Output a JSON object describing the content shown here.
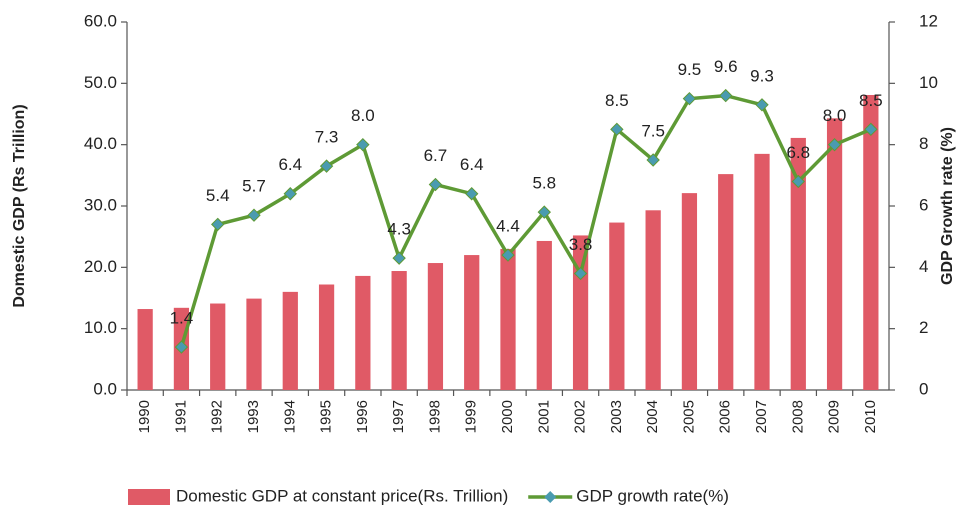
{
  "chart_data": {
    "type": "bar_line",
    "y_label": "Domestic GDP (Rs Trillion)",
    "y2_label": "GDP Growth rate (%)",
    "categories": [
      "1990",
      "1991",
      "1992",
      "1993",
      "1994",
      "1995",
      "1996",
      "1997",
      "1998",
      "1999",
      "2000",
      "2001",
      "2002",
      "2003",
      "2004",
      "2005",
      "2006",
      "2007",
      "2008",
      "2009",
      "2010"
    ],
    "series": [
      {
        "name": "Domestic GDP at constant price(Rs. Trillion)",
        "type": "bar",
        "color": "#e05a66",
        "values": [
          13.2,
          13.4,
          14.1,
          14.9,
          16.0,
          17.2,
          18.6,
          19.4,
          20.7,
          22.0,
          23.0,
          24.3,
          25.2,
          27.3,
          29.3,
          32.1,
          35.2,
          38.5,
          41.1,
          44.3,
          48.1
        ]
      },
      {
        "name": "GDP growth rate(%)",
        "type": "line",
        "axis": "y2",
        "color": "#5e9a35",
        "marker_color": "#4a9bb0",
        "values": [
          null,
          1.4,
          5.4,
          5.7,
          6.4,
          7.3,
          8.0,
          4.3,
          6.7,
          6.4,
          4.4,
          5.8,
          3.8,
          8.5,
          7.5,
          9.5,
          9.6,
          9.3,
          6.8,
          8.0,
          8.5
        ],
        "value_labels": [
          null,
          "1.4",
          "5.4",
          "5.7",
          "6.4",
          "7.3",
          "8.0",
          "4.3",
          "6.7",
          "6.4",
          "4.4",
          "5.8",
          "3.8",
          "8.5",
          "7.5",
          "9.5",
          "9.6",
          "9.3",
          "6.8",
          "8.0",
          "8.5"
        ]
      }
    ],
    "ylim": [
      0,
      60
    ],
    "yticks": [
      {
        "value": 0,
        "label": "0.0"
      },
      {
        "value": 10,
        "label": "10.0"
      },
      {
        "value": 20,
        "label": "20.0"
      },
      {
        "value": 30,
        "label": "30.0"
      },
      {
        "value": 40,
        "label": "40.0"
      },
      {
        "value": 50,
        "label": "50.0"
      },
      {
        "value": 60,
        "label": "60.0"
      }
    ],
    "y2lim": [
      0,
      12
    ],
    "y2ticks": [
      0,
      2,
      4,
      6,
      8,
      10,
      12
    ],
    "legend": "bottom"
  }
}
